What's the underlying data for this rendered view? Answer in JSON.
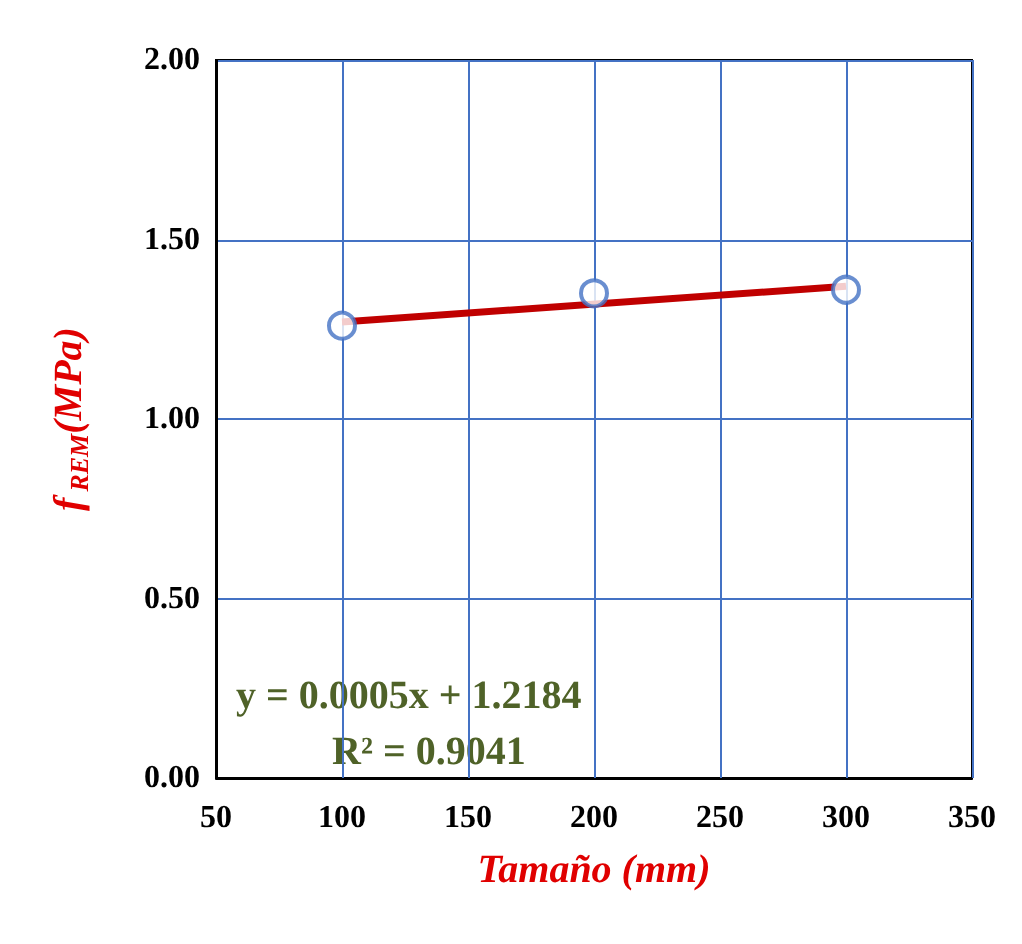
{
  "chart_data": {
    "type": "scatter",
    "xlabel": "Tamaño (mm)",
    "ylabel": "f$_{REM}$(MPa)",
    "xlim": [
      50,
      350
    ],
    "xticks": [
      50,
      100,
      150,
      200,
      250,
      300,
      350
    ],
    "ylim": [
      0,
      2
    ],
    "yticks": [
      {
        "value": 0,
        "label": "0.00"
      },
      {
        "value": 0.5,
        "label": "0.50"
      },
      {
        "value": 1,
        "label": "1.00"
      },
      {
        "value": 1.5,
        "label": "1.50"
      },
      {
        "value": 2,
        "label": "2.00"
      }
    ],
    "grid": true,
    "marker": "circle",
    "series": [
      {
        "type": "line",
        "color": "#c00000",
        "x": [
          100,
          300
        ],
        "values": [
          1.27,
          1.37
        ],
        "marker": "none"
      },
      {
        "color": "#4472c4",
        "x": [
          100,
          200,
          300
        ],
        "values": [
          1.26,
          1.35,
          1.36
        ]
      }
    ],
    "annotations": [
      "y = 0.0005x + 1.2184",
      "R² = 0.9041"
    ]
  }
}
